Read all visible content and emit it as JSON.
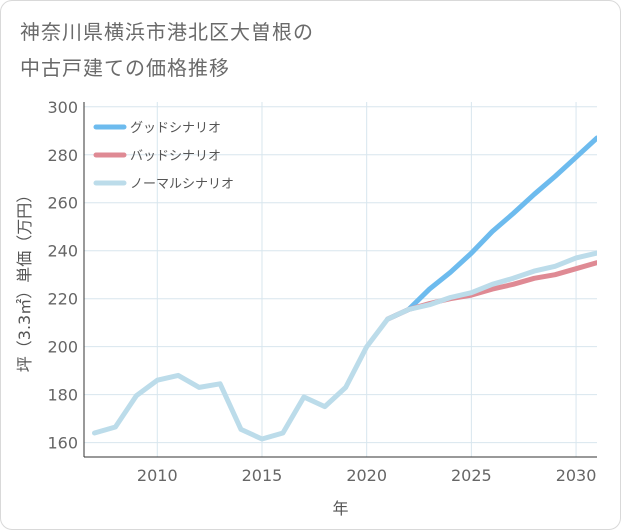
{
  "title": "神奈川県横浜市港北区大曽根の\n中古戸建ての価格推移",
  "chart_data": {
    "type": "line",
    "xlabel": "年",
    "ylabel": "坪（3.3㎡）単価（万円）",
    "xlim": [
      2006.5,
      2031
    ],
    "ylim": [
      154,
      302
    ],
    "xticks": [
      2010,
      2015,
      2020,
      2025,
      2030
    ],
    "yticks": [
      160,
      180,
      200,
      220,
      240,
      260,
      280,
      300
    ],
    "grid": true,
    "legend_position": "top-left",
    "series": [
      {
        "name": "グッドシナリオ",
        "color": "#6dbbee",
        "x": [
          2021,
          2022,
          2023,
          2024,
          2025,
          2026,
          2027,
          2028,
          2029,
          2030,
          2031
        ],
        "values": [
          211.5,
          215.5,
          224,
          231,
          239,
          248,
          255.5,
          263.5,
          271,
          279,
          287
        ]
      },
      {
        "name": "バッドシナリオ",
        "color": "#df8a94",
        "x": [
          2021,
          2022,
          2023,
          2024,
          2025,
          2026,
          2027,
          2028,
          2029,
          2030,
          2031
        ],
        "values": [
          211.5,
          215.5,
          218,
          220,
          221.5,
          224,
          226,
          228.5,
          230,
          232.5,
          235
        ]
      },
      {
        "name": "ノーマルシナリオ",
        "color": "#bcdcea",
        "x": [
          2007,
          2008,
          2009,
          2010,
          2011,
          2012,
          2013,
          2014,
          2015,
          2016,
          2017,
          2018,
          2019,
          2020,
          2021,
          2022,
          2023,
          2024,
          2025,
          2026,
          2027,
          2028,
          2029,
          2030,
          2031
        ],
        "values": [
          164,
          166.5,
          179.5,
          186,
          188,
          183,
          184.5,
          165.5,
          161.5,
          164,
          179,
          175,
          183,
          200,
          211.5,
          215.5,
          217.5,
          220.5,
          222.5,
          226,
          228.5,
          231.5,
          233.5,
          237,
          239
        ]
      }
    ]
  }
}
